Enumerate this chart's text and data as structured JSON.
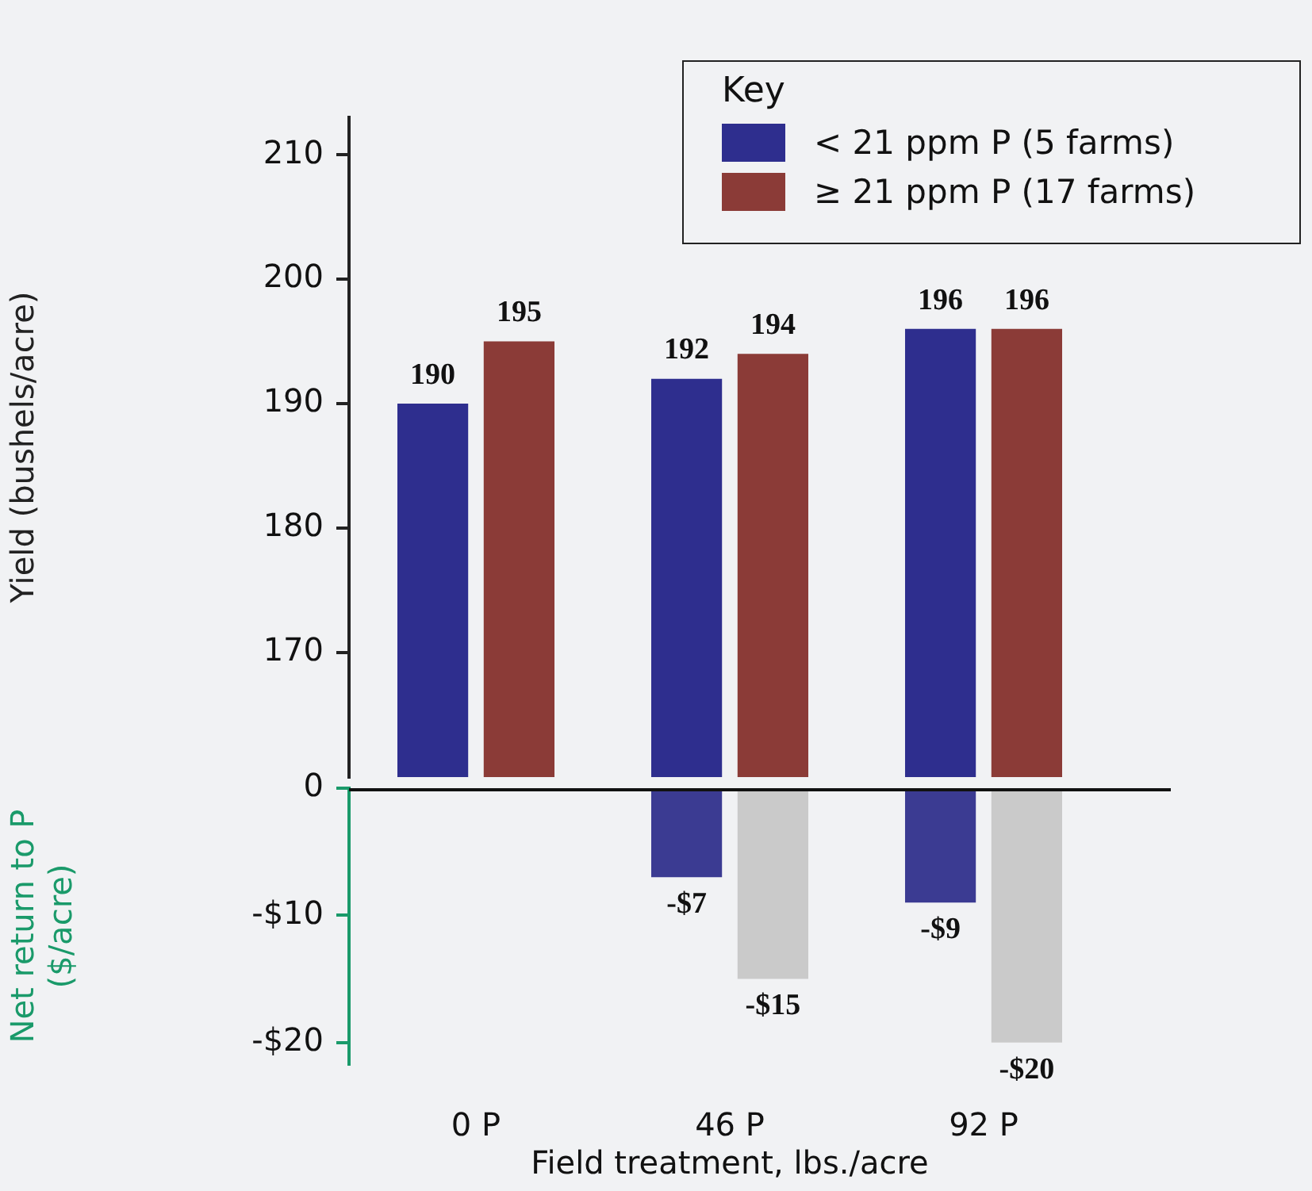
{
  "chart_data": [
    {
      "type": "bar",
      "ylabel": "Yield (bushels/acre)",
      "legend_title": "Key",
      "legend": "top right",
      "tick_labels": "y",
      "data_labels": true,
      "grid": false,
      "series": [
        {
          "name": "< 21 ppm P (5 farms)",
          "color": "#2e2e8e",
          "values": [
            190,
            192,
            196
          ]
        },
        {
          "name": "≥ 21 ppm P (17 farms)",
          "color": "#8b3b37",
          "values": [
            195,
            194,
            196
          ]
        }
      ],
      "ylim": [
        160,
        213
      ],
      "yticks": [
        170,
        180,
        190,
        200,
        210
      ]
    },
    {
      "type": "bar",
      "ylabel": "Net return to P\n($/acre)",
      "xlabel": "Field treatment, lbs./acre",
      "categories": [
        "0 P",
        "46 P",
        "92 P"
      ],
      "grid": false,
      "series": [
        {
          "color": "#3b3b92",
          "values": [
            null,
            -7,
            -9
          ],
          "value_labels": [
            null,
            "-$7",
            "-$9"
          ]
        },
        {
          "color": "#cacaca",
          "values": [
            null,
            -15,
            -20
          ],
          "value_labels": [
            null,
            "-$15",
            "-$20"
          ]
        }
      ],
      "ylim": [
        -21.7,
        0
      ],
      "yticks": [
        {
          "value": 0,
          "label": "0"
        },
        {
          "value": -10,
          "label": "-$10"
        },
        {
          "value": -20,
          "label": "-$20"
        }
      ]
    }
  ]
}
